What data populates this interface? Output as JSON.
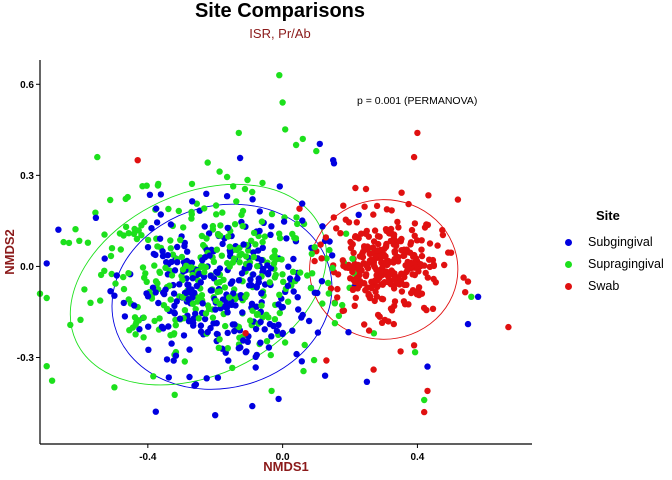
{
  "chart_data": {
    "type": "scatter",
    "title": "Site Comparisons",
    "subtitle": "ISR, Pr/Ab",
    "xlabel": "NMDS1",
    "ylabel": "NMDS2",
    "xlim": [
      -0.72,
      0.74
    ],
    "ylim": [
      -0.585,
      0.68
    ],
    "xticks": [
      -0.4,
      0.0,
      0.4
    ],
    "xtick_labels": [
      "-0.4",
      "0.0",
      "0.4"
    ],
    "yticks": [
      -0.3,
      0.0,
      0.3,
      0.6
    ],
    "ytick_labels": [
      "-0.3",
      "0.0",
      "0.3",
      "0.6"
    ],
    "annotation": "p =  0.001 (PERMANOVA)",
    "legend": {
      "title": "Site",
      "position": "right"
    },
    "series": [
      {
        "name": "Subgingival",
        "color": "#0000E0",
        "ellipse": {
          "center": [
            -0.18,
            -0.1
          ],
          "radius": [
            0.33,
            0.3
          ],
          "angle_deg": -15
        },
        "cluster": {
          "n": 300,
          "center": [
            -0.18,
            -0.08
          ],
          "sd": [
            0.14,
            0.14
          ],
          "seed": 11
        },
        "points": [
          [
            -0.7,
            0.01
          ],
          [
            0.58,
            -0.1
          ],
          [
            0.55,
            -0.19
          ],
          [
            0.43,
            -0.33
          ],
          [
            -0.2,
            -0.49
          ],
          [
            -0.09,
            -0.46
          ],
          [
            0.25,
            -0.38
          ],
          [
            0.15,
            0.35
          ]
        ]
      },
      {
        "name": "Supragingival",
        "color": "#1CE01C",
        "ellipse": {
          "center": [
            -0.25,
            -0.06
          ],
          "radius": [
            0.4,
            0.3
          ],
          "angle_deg": -25
        },
        "cluster": {
          "n": 330,
          "center": [
            -0.22,
            -0.04
          ],
          "sd": [
            0.18,
            0.15
          ],
          "seed": 23
        },
        "points": [
          [
            -0.01,
            0.63
          ],
          [
            0.0,
            0.54
          ],
          [
            -0.72,
            -0.09
          ],
          [
            -0.55,
            0.36
          ],
          [
            -0.57,
            -0.12
          ],
          [
            0.06,
            0.42
          ],
          [
            0.1,
            0.38
          ],
          [
            0.42,
            -0.44
          ],
          [
            -0.13,
            0.44
          ],
          [
            0.04,
            0.4
          ],
          [
            -0.65,
            0.08
          ],
          [
            0.56,
            -0.1
          ]
        ]
      },
      {
        "name": "Swab",
        "color": "#E01010",
        "ellipse": {
          "center": [
            0.3,
            -0.01
          ],
          "radius": [
            0.22,
            0.23
          ],
          "angle_deg": 0
        },
        "cluster": {
          "n": 300,
          "center": [
            0.31,
            0.01
          ],
          "sd": [
            0.08,
            0.08
          ],
          "seed": 37
        },
        "points": [
          [
            0.4,
            0.44
          ],
          [
            0.39,
            0.36
          ],
          [
            0.67,
            -0.2
          ],
          [
            0.42,
            -0.48
          ],
          [
            0.43,
            -0.41
          ],
          [
            0.55,
            -0.05
          ],
          [
            0.52,
            0.22
          ],
          [
            -0.43,
            0.35
          ],
          [
            0.35,
            -0.28
          ],
          [
            0.33,
            -0.19
          ],
          [
            0.1,
            0.05
          ],
          [
            0.05,
            0.19
          ],
          [
            0.13,
            -0.31
          ],
          [
            0.39,
            -0.26
          ],
          [
            -0.11,
            -0.22
          ],
          [
            0.18,
            0.2
          ],
          [
            0.27,
            -0.34
          ]
        ]
      }
    ]
  }
}
